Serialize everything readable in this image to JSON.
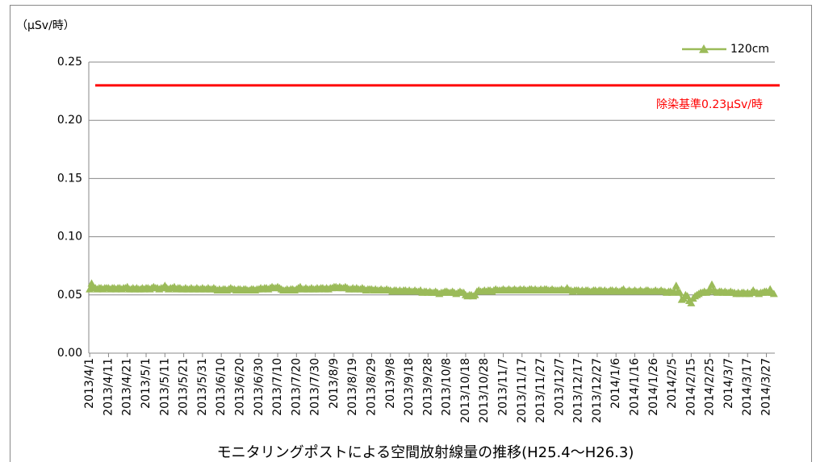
{
  "chart_data": {
    "type": "line",
    "title": "モニタリングポストによる空間放射線量の推移(H25.4～H26.3)",
    "y_label": "（μSv/時）",
    "categories": [
      "2013/4/1",
      null,
      null,
      null,
      null,
      null,
      null,
      null,
      null,
      null,
      "2013/4/11",
      null,
      null,
      null,
      null,
      null,
      null,
      null,
      null,
      null,
      "2013/4/21",
      null,
      null,
      null,
      null,
      null,
      null,
      null,
      null,
      null,
      "2013/5/1",
      null,
      null,
      null,
      null,
      null,
      null,
      null,
      null,
      null,
      "2013/5/11",
      null,
      null,
      null,
      null,
      null,
      null,
      null,
      null,
      null,
      "2013/5/21",
      null,
      null,
      null,
      null,
      null,
      null,
      null,
      null,
      null,
      "2013/5/31",
      null,
      null,
      null,
      null,
      null,
      null,
      null,
      null,
      null,
      "2013/6/10",
      null,
      null,
      null,
      null,
      null,
      null,
      null,
      null,
      null,
      "2013/6/20",
      null,
      null,
      null,
      null,
      null,
      null,
      null,
      null,
      null,
      "2013/6/30",
      null,
      null,
      null,
      null,
      null,
      null,
      null,
      null,
      null,
      "2013/7/10",
      null,
      null,
      null,
      null,
      null,
      null,
      null,
      null,
      null,
      "2013/7/20",
      null,
      null,
      null,
      null,
      null,
      null,
      null,
      null,
      null,
      "2013/7/30",
      null,
      null,
      null,
      null,
      null,
      null,
      null,
      null,
      null,
      "2013/8/9",
      null,
      null,
      null,
      null,
      null,
      null,
      null,
      null,
      null,
      "2013/8/19",
      null,
      null,
      null,
      null,
      null,
      null,
      null,
      null,
      null,
      "2013/8/29",
      null,
      null,
      null,
      null,
      null,
      null,
      null,
      null,
      null,
      "2013/9/8",
      null,
      null,
      null,
      null,
      null,
      null,
      null,
      null,
      null,
      "2013/9/18",
      null,
      null,
      null,
      null,
      null,
      null,
      null,
      null,
      null,
      "2013/9/28",
      null,
      null,
      null,
      null,
      null,
      null,
      null,
      null,
      null,
      "2013/10/8",
      null,
      null,
      null,
      null,
      null,
      null,
      null,
      null,
      null,
      "2013/10/18",
      null,
      null,
      null,
      null,
      null,
      null,
      null,
      null,
      null,
      "2013/10/28",
      null,
      null,
      null,
      null,
      null,
      null,
      null,
      null,
      null,
      "2013/11/7",
      null,
      null,
      null,
      null,
      null,
      null,
      null,
      null,
      null,
      "2013/11/17",
      null,
      null,
      null,
      null,
      null,
      null,
      null,
      null,
      null,
      "2013/11/27",
      null,
      null,
      null,
      null,
      null,
      null,
      null,
      null,
      null,
      "2013/12/7",
      null,
      null,
      null,
      null,
      null,
      null,
      null,
      null,
      null,
      "2013/12/17",
      null,
      null,
      null,
      null,
      null,
      null,
      null,
      null,
      null,
      "2013/12/27",
      null,
      null,
      null,
      null,
      null,
      null,
      null,
      null,
      null,
      "2014/1/6",
      null,
      null,
      null,
      null,
      null,
      null,
      null,
      null,
      null,
      "2014/1/16",
      null,
      null,
      null,
      null,
      null,
      null,
      null,
      null,
      null,
      "2014/1/26",
      null,
      null,
      null,
      null,
      null,
      null,
      null,
      null,
      null,
      "2014/2/5",
      null,
      null,
      null,
      null,
      null,
      null,
      null,
      null,
      null,
      "2014/2/15",
      null,
      null,
      null,
      null,
      null,
      null,
      null,
      null,
      null,
      "2014/2/25",
      null,
      null,
      null,
      null,
      null,
      null,
      null,
      null,
      null,
      "2014/3/7",
      null,
      null,
      null,
      null,
      null,
      null,
      null,
      null,
      null,
      "2014/3/17",
      null,
      null,
      null,
      null,
      null,
      null,
      null,
      null,
      null,
      "2014/3/27",
      null,
      null,
      null,
      null
    ],
    "series": [
      {
        "name": "120cm",
        "color": "#9bbb59",
        "values": [
          0.055,
          0.06,
          0.057,
          0.056,
          0.055,
          0.056,
          0.056,
          0.055,
          0.056,
          0.056,
          0.056,
          0.055,
          0.056,
          0.056,
          0.055,
          0.056,
          0.056,
          0.055,
          0.056,
          0.056,
          0.057,
          0.055,
          0.055,
          0.056,
          0.055,
          0.056,
          0.055,
          0.055,
          0.056,
          0.055,
          0.056,
          0.056,
          0.055,
          0.056,
          0.057,
          0.056,
          0.056,
          0.055,
          0.056,
          0.056,
          0.058,
          0.056,
          0.055,
          0.056,
          0.056,
          0.057,
          0.055,
          0.056,
          0.056,
          0.055,
          0.055,
          0.056,
          0.055,
          0.055,
          0.056,
          0.055,
          0.055,
          0.056,
          0.055,
          0.055,
          0.056,
          0.055,
          0.055,
          0.056,
          0.055,
          0.055,
          0.056,
          0.055,
          0.054,
          0.055,
          0.054,
          0.055,
          0.055,
          0.054,
          0.055,
          0.056,
          0.055,
          0.055,
          0.054,
          0.055,
          0.055,
          0.054,
          0.055,
          0.055,
          0.054,
          0.054,
          0.055,
          0.055,
          0.054,
          0.055,
          0.055,
          0.056,
          0.055,
          0.056,
          0.056,
          0.055,
          0.056,
          0.057,
          0.056,
          0.056,
          0.057,
          0.056,
          0.055,
          0.054,
          0.054,
          0.055,
          0.054,
          0.055,
          0.055,
          0.054,
          0.055,
          0.056,
          0.057,
          0.055,
          0.055,
          0.056,
          0.055,
          0.055,
          0.056,
          0.055,
          0.055,
          0.056,
          0.055,
          0.056,
          0.056,
          0.055,
          0.056,
          0.055,
          0.056,
          0.056,
          0.057,
          0.057,
          0.056,
          0.057,
          0.056,
          0.056,
          0.057,
          0.056,
          0.055,
          0.055,
          0.056,
          0.055,
          0.056,
          0.055,
          0.055,
          0.056,
          0.055,
          0.054,
          0.055,
          0.055,
          0.055,
          0.054,
          0.055,
          0.054,
          0.054,
          0.055,
          0.054,
          0.054,
          0.055,
          0.054,
          0.054,
          0.053,
          0.054,
          0.054,
          0.053,
          0.054,
          0.053,
          0.054,
          0.054,
          0.053,
          0.054,
          0.053,
          0.053,
          0.054,
          0.053,
          0.053,
          0.054,
          0.052,
          0.053,
          0.053,
          0.052,
          0.053,
          0.052,
          0.052,
          0.053,
          0.052,
          0.051,
          0.052,
          0.052,
          0.053,
          0.053,
          0.052,
          0.052,
          0.053,
          0.052,
          0.051,
          0.052,
          0.053,
          0.052,
          0.052,
          0.05,
          0.049,
          0.05,
          0.05,
          0.049,
          0.05,
          0.053,
          0.054,
          0.053,
          0.053,
          0.054,
          0.053,
          0.054,
          0.054,
          0.053,
          0.054,
          0.055,
          0.054,
          0.054,
          0.054,
          0.055,
          0.054,
          0.054,
          0.055,
          0.054,
          0.054,
          0.055,
          0.054,
          0.054,
          0.055,
          0.054,
          0.055,
          0.054,
          0.054,
          0.055,
          0.055,
          0.054,
          0.055,
          0.054,
          0.054,
          0.055,
          0.054,
          0.055,
          0.055,
          0.054,
          0.054,
          0.055,
          0.054,
          0.054,
          0.054,
          0.054,
          0.055,
          0.054,
          0.054,
          0.056,
          0.054,
          0.054,
          0.053,
          0.054,
          0.054,
          0.054,
          0.053,
          0.054,
          0.053,
          0.054,
          0.054,
          0.053,
          0.053,
          0.054,
          0.054,
          0.053,
          0.054,
          0.054,
          0.053,
          0.054,
          0.053,
          0.053,
          0.054,
          0.054,
          0.053,
          0.054,
          0.053,
          0.053,
          0.054,
          0.055,
          0.053,
          0.053,
          0.054,
          0.053,
          0.053,
          0.054,
          0.053,
          0.053,
          0.054,
          0.053,
          0.053,
          0.054,
          0.054,
          0.053,
          0.053,
          0.053,
          0.054,
          0.053,
          0.053,
          0.054,
          0.053,
          0.053,
          0.052,
          0.053,
          0.053,
          0.052,
          0.053,
          0.058,
          0.053,
          0.052,
          0.046,
          0.047,
          0.05,
          0.049,
          0.045,
          0.043,
          0.047,
          0.049,
          0.05,
          0.051,
          0.052,
          0.052,
          0.053,
          0.052,
          0.053,
          0.055,
          0.059,
          0.054,
          0.053,
          0.052,
          0.053,
          0.053,
          0.052,
          0.053,
          0.052,
          0.052,
          0.053,
          0.052,
          0.052,
          0.051,
          0.052,
          0.051,
          0.052,
          0.052,
          0.051,
          0.052,
          0.051,
          0.052,
          0.054,
          0.052,
          0.052,
          0.051,
          0.052,
          0.052,
          0.053,
          0.053,
          0.052,
          0.055,
          0.052,
          0.051
        ]
      }
    ],
    "threshold": {
      "value": 0.23,
      "label": "除染基準0.23μSv/時",
      "color": "#ff0000"
    },
    "ylim": [
      0,
      0.25
    ],
    "yticks": [
      {
        "value": 0,
        "label": "0.00"
      },
      {
        "value": 0.05,
        "label": "0.05"
      },
      {
        "value": 0.1,
        "label": "0.10"
      },
      {
        "value": 0.15,
        "label": "0.15"
      },
      {
        "value": 0.2,
        "label": "0.20"
      },
      {
        "value": 0.25,
        "label": "0.25"
      }
    ],
    "grid": true,
    "legend": "top-right"
  }
}
